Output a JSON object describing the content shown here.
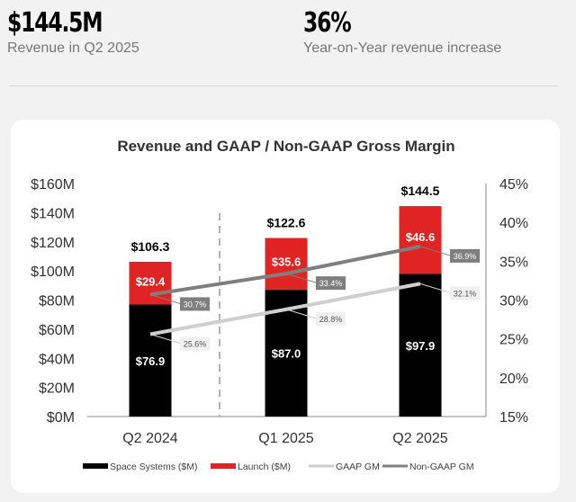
{
  "kpis": [
    {
      "value": "$144.5M",
      "label": "Revenue in Q2 2025"
    },
    {
      "value": "36%",
      "label": "Year-on-Year revenue increase"
    }
  ],
  "chart_data": {
    "type": "bar",
    "title": "Revenue and GAAP / Non-GAAP Gross Margin",
    "categories": [
      "Q2 2024",
      "Q1 2025",
      "Q2 2025"
    ],
    "series": [
      {
        "name": "Space Systems ($M)",
        "kind": "bar",
        "color": "#000000",
        "values": [
          76.9,
          87.0,
          97.9
        ],
        "labels": [
          "$76.9",
          "$87.0",
          "$97.9"
        ]
      },
      {
        "name": "Launch ($M)",
        "kind": "bar",
        "color": "#e02424",
        "values": [
          29.4,
          35.6,
          46.6
        ],
        "labels": [
          "$29.4",
          "$35.6",
          "$46.6"
        ]
      },
      {
        "name": "GAAP GM",
        "kind": "line",
        "axis": "right",
        "color": "#cfcfcf",
        "values": [
          25.6,
          28.8,
          32.1
        ],
        "labels": [
          "25.6%",
          "28.8%",
          "32.1%"
        ]
      },
      {
        "name": "Non-GAAP GM",
        "kind": "line",
        "axis": "right",
        "color": "#7f7f7f",
        "values": [
          30.7,
          33.4,
          36.9
        ],
        "labels": [
          "30.7%",
          "33.4%",
          "36.9%"
        ]
      }
    ],
    "totals": [
      "$106.3",
      "$122.6",
      "$144.5"
    ],
    "y_left": {
      "range": [
        0,
        160
      ],
      "ticks": [
        "$0M",
        "$20M",
        "$40M",
        "$60M",
        "$80M",
        "$100M",
        "$120M",
        "$140M",
        "$160M"
      ]
    },
    "y_right": {
      "range": [
        15,
        45
      ],
      "ticks": [
        "15%",
        "20%",
        "25%",
        "30%",
        "35%",
        "40%",
        "45%"
      ]
    },
    "grid": false,
    "legend": "bottom",
    "stacked": true
  }
}
